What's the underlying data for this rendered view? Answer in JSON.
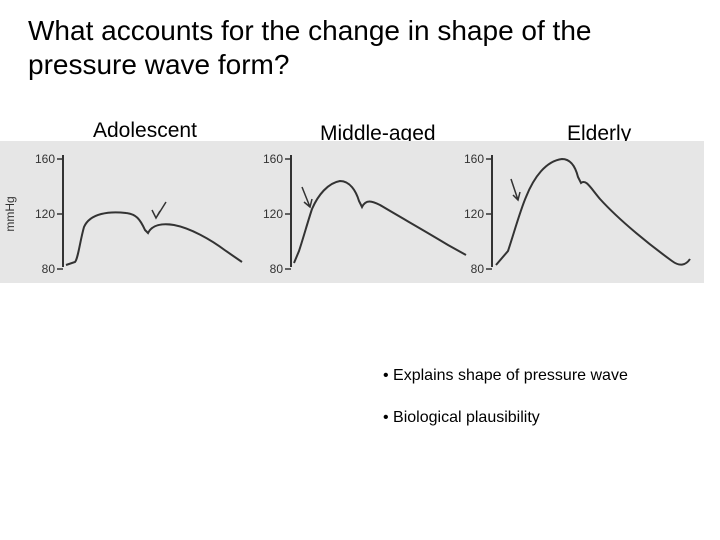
{
  "slide": {
    "title": "What accounts for the change in shape of the pressure wave form?"
  },
  "figure": {
    "columns": [
      "Adolescent",
      "Middle-aged",
      "Elderly"
    ],
    "y_axis_unit": "mmHg",
    "tick_labels": [
      "160",
      "120",
      "80"
    ],
    "colors": {
      "background": "#e6e6e6",
      "ink": "#333333"
    }
  },
  "bullets": [
    "Explains shape of pressure wave",
    "Biological plausibility"
  ]
}
